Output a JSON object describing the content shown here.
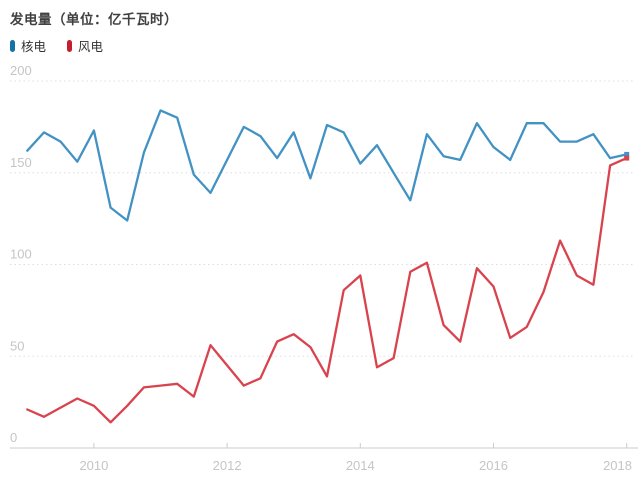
{
  "title": "发电量（单位：亿千瓦时）",
  "legend": {
    "items": [
      {
        "label": "核电",
        "color": "#1472a5"
      },
      {
        "label": "风电",
        "color": "#c2202e"
      }
    ]
  },
  "chart_data": {
    "type": "line",
    "title": "发电量（单位：亿千瓦时）",
    "xlabel": "",
    "ylabel": "亿千瓦时",
    "ylim": [
      0,
      200
    ],
    "y_ticks": [
      0,
      50,
      100,
      150,
      200
    ],
    "grid": "horizontal-dotted",
    "legend_position": "top-left",
    "x_tick_labels": [
      "2010",
      "2012",
      "2014",
      "2016",
      "2018"
    ],
    "x_tick_indices": [
      4,
      12,
      20,
      28,
      36
    ],
    "x_quarters": [
      "2009Q1",
      "2009Q2",
      "2009Q3",
      "2009Q4",
      "2010Q1",
      "2010Q2",
      "2010Q3",
      "2010Q4",
      "2011Q1",
      "2011Q2",
      "2011Q3",
      "2011Q4",
      "2012Q1",
      "2012Q2",
      "2012Q3",
      "2012Q4",
      "2013Q1",
      "2013Q2",
      "2013Q3",
      "2013Q4",
      "2014Q1",
      "2014Q2",
      "2014Q3",
      "2014Q4",
      "2015Q1",
      "2015Q2",
      "2015Q3",
      "2015Q4",
      "2016Q1",
      "2016Q2",
      "2016Q3",
      "2016Q4",
      "2017Q1",
      "2017Q2",
      "2017Q3",
      "2017Q4",
      "2018Q1"
    ],
    "series": [
      {
        "name": "核电",
        "id": "nuclear-power",
        "color": "#4292c3",
        "end_marker": true,
        "values": [
          162,
          172,
          167,
          156,
          173,
          131,
          124,
          161,
          184,
          180,
          149,
          139,
          157,
          175,
          170,
          158,
          172,
          147,
          176,
          172,
          155,
          165,
          150,
          135,
          171,
          159,
          157,
          177,
          164,
          157,
          177,
          177,
          167,
          167,
          171,
          158,
          160
        ]
      },
      {
        "name": "风电",
        "id": "wind-power",
        "color": "#d9434e",
        "end_marker": true,
        "values": [
          21,
          17,
          22,
          27,
          23,
          14,
          23,
          33,
          34,
          35,
          28,
          56,
          45,
          34,
          38,
          58,
          62,
          55,
          39,
          86,
          94,
          44,
          49,
          96,
          101,
          67,
          58,
          98,
          88,
          60,
          66,
          85,
          113,
          94,
          89,
          154,
          158
        ]
      }
    ],
    "axis_label_color": "#c3c5c7",
    "gridline_color": "#dddddd",
    "axis_line_color": "#cccccc"
  }
}
